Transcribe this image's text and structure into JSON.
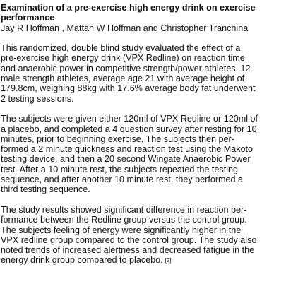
{
  "title": {
    "lines": [
      "Examination of a pre-exercise high energy drink on exercise",
      "performance"
    ]
  },
  "authors": "Jay R Hoffman , Mattan W Hoffman and Christopher Tranchina",
  "paragraphs": [
    {
      "lines": [
        "This randomized, double blind study evaluated the effect of a",
        "pre-exercise high energy drink (VPX Redline) on reaction time",
        "and anaerobic power in competitive strength/power athletes. 12",
        "male strength athletes, average age 21 with average height of",
        "179.8cm, weighing 88kg with 17.6% average body fat underwent",
        "2 testing sessions."
      ]
    },
    {
      "lines": [
        "The subjects were given either 120ml of VPX Redline or 120ml of",
        "a placebo, and completed a 4 question survey after resting for 10",
        "minutes, prior to beginning exercise. The subjects then per-",
        "formed a 2 minute quickness and reaction test using the Makoto",
        "testing device, and then a 20 second Wingate Anaerobic Power",
        "test. After a 10 minute rest, the subjects repeated the testing",
        "sequence, and after another 10 minute rest, they performed a",
        "third testing sequence."
      ]
    },
    {
      "lines": [
        "The study results showed significant difference in reaction per-",
        "formance between the Redline group versus the control group.",
        "The subjects feeling of energy were significantly higher in the",
        "VPX redline group compared to the control group. The study also",
        "noted trends of increased alertness and decreased fatigue in the",
        "energy drink group compared to placebo."
      ]
    }
  ],
  "citation": "[2]"
}
